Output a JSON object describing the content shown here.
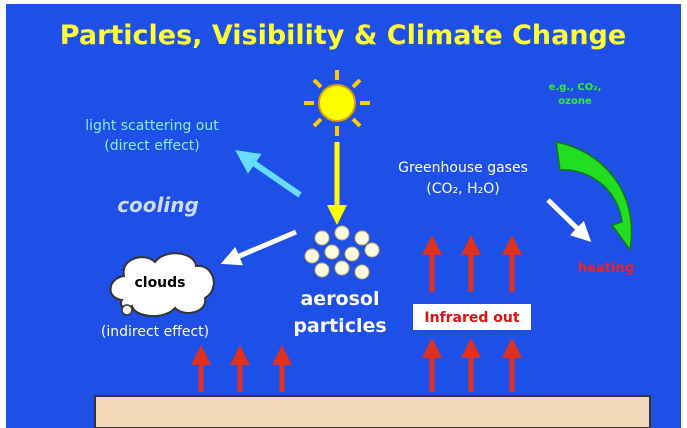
{
  "header": {
    "title": "Particles, Visibility & Climate Change"
  },
  "labels": {
    "scattering": [
      "light scattering out",
      "(direct effect)"
    ],
    "cooling": "cooling",
    "clouds": "clouds",
    "indirect": "(indirect effect)",
    "aerosol": [
      "aerosol",
      "particles"
    ],
    "greenhouse": [
      "Greenhouse gases",
      "(CO₂, H₂O)"
    ],
    "examples": [
      "e.g., CO₂,",
      "ozone"
    ],
    "heating": "heating",
    "infrared": "Infrared out"
  }
}
